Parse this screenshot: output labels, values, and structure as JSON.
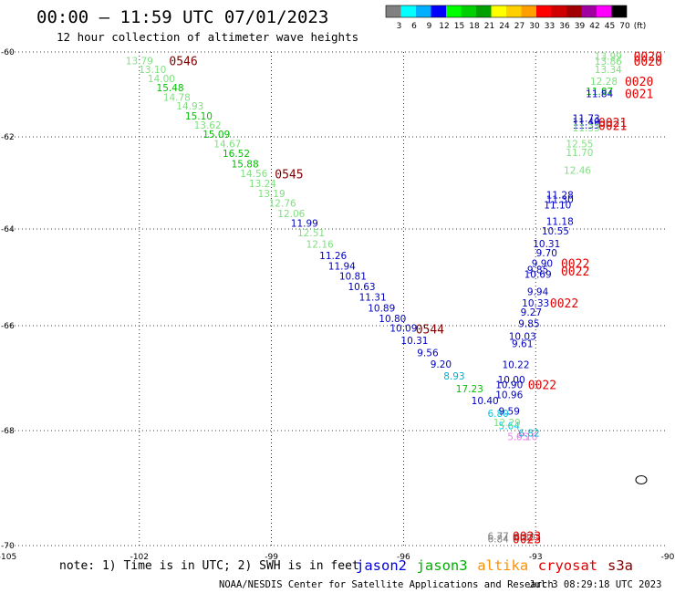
{
  "header": {
    "title": "00:00 – 11:59 UTC 07/01/2023",
    "subtitle": "12 hour collection of altimeter wave heights"
  },
  "colorbar": {
    "colors": [
      "#808080",
      "#00ffff",
      "#00b0ff",
      "#0000ff",
      "#00ff00",
      "#00d000",
      "#00a000",
      "#ffff00",
      "#ffd000",
      "#ffa000",
      "#ff0000",
      "#d00000",
      "#a00000",
      "#a000a0",
      "#ff00ff",
      "#000000"
    ],
    "labels": [
      "3",
      "6",
      "9",
      "12",
      "15",
      "18",
      "21",
      "24",
      "27",
      "30",
      "33",
      "36",
      "39",
      "42",
      "45",
      "70",
      "(ft)"
    ]
  },
  "map": {
    "x_ticks": [
      "-105",
      "-102",
      "-99",
      "-96",
      "-93",
      "-90"
    ],
    "y_ticks": [
      "-60",
      "-62",
      "-64",
      "-66",
      "-68",
      "-70"
    ],
    "grid": "dotted"
  },
  "observations": [
    {
      "t": "13.79",
      "c": "#80e080",
      "lon": -102.0,
      "lat": -60.2
    },
    {
      "t": "13.10",
      "c": "#80e080",
      "lon": -101.7,
      "lat": -60.41
    },
    {
      "t": "14.00",
      "c": "#80e080",
      "lon": -101.5,
      "lat": -60.62
    },
    {
      "t": "15.48",
      "c": "#00c000",
      "lon": -101.3,
      "lat": -60.84
    },
    {
      "t": "14.78",
      "c": "#80e080",
      "lon": -101.15,
      "lat": -61.06
    },
    {
      "t": "14.93",
      "c": "#80e080",
      "lon": -100.85,
      "lat": -61.27
    },
    {
      "t": "15.10",
      "c": "#00c000",
      "lon": -100.65,
      "lat": -61.5
    },
    {
      "t": "13.62",
      "c": "#80e080",
      "lon": -100.45,
      "lat": -61.72
    },
    {
      "t": "15.09",
      "c": "#00c000",
      "lon": -100.25,
      "lat": -61.94
    },
    {
      "t": "14.67",
      "c": "#80e080",
      "lon": -100.0,
      "lat": -62.15
    },
    {
      "t": "16.52",
      "c": "#00c000",
      "lon": -99.8,
      "lat": -62.36
    },
    {
      "t": "15.88",
      "c": "#00c000",
      "lon": -99.6,
      "lat": -62.58
    },
    {
      "t": "14.56",
      "c": "#80e080",
      "lon": -99.4,
      "lat": -62.79
    },
    {
      "t": "13.24",
      "c": "#80e080",
      "lon": -99.2,
      "lat": -63.01
    },
    {
      "t": "13.19",
      "c": "#80e080",
      "lon": -99.0,
      "lat": -63.23
    },
    {
      "t": "12.76",
      "c": "#80e080",
      "lon": -98.75,
      "lat": -63.44
    },
    {
      "t": "12.06",
      "c": "#80e080",
      "lon": -98.55,
      "lat": -63.66
    },
    {
      "t": "11.99",
      "c": "#0000c0",
      "lon": -98.25,
      "lat": -63.87
    },
    {
      "t": "12.51",
      "c": "#80e080",
      "lon": -98.1,
      "lat": -64.08
    },
    {
      "t": "12.16",
      "c": "#80e080",
      "lon": -97.9,
      "lat": -64.31
    },
    {
      "t": "11.26",
      "c": "#0000c0",
      "lon": -97.6,
      "lat": -64.55
    },
    {
      "t": "11.94",
      "c": "#0000c0",
      "lon": -97.4,
      "lat": -64.76
    },
    {
      "t": "10.81",
      "c": "#0000c0",
      "lon": -97.15,
      "lat": -64.97
    },
    {
      "t": "10.63",
      "c": "#0000c0",
      "lon": -96.95,
      "lat": -65.19
    },
    {
      "t": "11.31",
      "c": "#0000c0",
      "lon": -96.7,
      "lat": -65.41
    },
    {
      "t": "10.89",
      "c": "#0000c0",
      "lon": -96.5,
      "lat": -65.63
    },
    {
      "t": "10.80",
      "c": "#0000c0",
      "lon": -96.25,
      "lat": -65.85
    },
    {
      "t": "10.09",
      "c": "#0000c0",
      "lon": -96.0,
      "lat": -66.04
    },
    {
      "t": "10.31",
      "c": "#0000c0",
      "lon": -95.75,
      "lat": -66.28
    },
    {
      "t": "9.56",
      "c": "#0000c0",
      "lon": -95.45,
      "lat": -66.51
    },
    {
      "t": "9.20",
      "c": "#0000c0",
      "lon": -95.15,
      "lat": -66.73
    },
    {
      "t": "8.93",
      "c": "#00b0d0",
      "lon": -94.85,
      "lat": -66.96
    },
    {
      "t": "17.23",
      "c": "#00c000",
      "lon": -94.5,
      "lat": -67.2
    },
    {
      "t": "10.40",
      "c": "#0000c0",
      "lon": -94.15,
      "lat": -67.43
    },
    {
      "t": "6.80",
      "c": "#00c8e8",
      "lon": -93.85,
      "lat": -67.67
    },
    {
      "t": "5.64",
      "c": "#00c8e8",
      "lon": -93.6,
      "lat": -67.9
    },
    {
      "t": "5.95",
      "c": "#f080f0",
      "lon": -93.4,
      "lat": -68.1
    },
    {
      "t": "6.16",
      "c": "#f080f0",
      "lon": -93.2,
      "lat": -68.1
    },
    {
      "t": "6.82",
      "c": "#00b0d0",
      "lon": -93.15,
      "lat": -68.04
    },
    {
      "t": "13.99",
      "c": "#80e080",
      "lon": -91.35,
      "lat": -60.1
    },
    {
      "t": "13.86",
      "c": "#80e080",
      "lon": -91.35,
      "lat": -60.21
    },
    {
      "t": "13.34",
      "c": "#80e080",
      "lon": -91.35,
      "lat": -60.41
    },
    {
      "t": "12.28",
      "c": "#80e080",
      "lon": -91.45,
      "lat": -60.69
    },
    {
      "t": "11.87",
      "c": "#00c000",
      "lon": -91.55,
      "lat": -60.93
    },
    {
      "t": "11.84",
      "c": "#0000c0",
      "lon": -91.55,
      "lat": -60.98
    },
    {
      "t": "11.73",
      "c": "#0000c0",
      "lon": -91.85,
      "lat": -61.56
    },
    {
      "t": "11.49",
      "c": "#0000c0",
      "lon": -91.85,
      "lat": -61.64
    },
    {
      "t": "11.35",
      "c": "#0000c0",
      "lon": -91.85,
      "lat": -61.72
    },
    {
      "t": "11.33",
      "c": "#80e080",
      "lon": -91.85,
      "lat": -61.78
    },
    {
      "t": "12.55",
      "c": "#80e080",
      "lon": -92.0,
      "lat": -62.15
    },
    {
      "t": "11.70",
      "c": "#80e080",
      "lon": -92.0,
      "lat": -62.34
    },
    {
      "t": "12.46",
      "c": "#80e080",
      "lon": -92.05,
      "lat": -62.72
    },
    {
      "t": "11.28",
      "c": "#0000c0",
      "lon": -92.45,
      "lat": -63.26
    },
    {
      "t": "11.30",
      "c": "#0000c0",
      "lon": -92.45,
      "lat": -63.36
    },
    {
      "t": "11.10",
      "c": "#0000c0",
      "lon": -92.5,
      "lat": -63.48
    },
    {
      "t": "11.18",
      "c": "#0000c0",
      "lon": -92.45,
      "lat": -63.83
    },
    {
      "t": "10.55",
      "c": "#0000c0",
      "lon": -92.55,
      "lat": -64.04
    },
    {
      "t": "10.31",
      "c": "#0000c0",
      "lon": -92.75,
      "lat": -64.3
    },
    {
      "t": "9.70",
      "c": "#0000c0",
      "lon": -92.75,
      "lat": -64.49
    },
    {
      "t": "9.90",
      "c": "#0000c0",
      "lon": -92.85,
      "lat": -64.71
    },
    {
      "t": "9.85",
      "c": "#0000c0",
      "lon": -92.95,
      "lat": -64.84
    },
    {
      "t": "10.69",
      "c": "#0000c0",
      "lon": -92.95,
      "lat": -64.93
    },
    {
      "t": "9.94",
      "c": "#0000c0",
      "lon": -92.95,
      "lat": -65.29
    },
    {
      "t": "10.33",
      "c": "#0000c0",
      "lon": -93.0,
      "lat": -65.53
    },
    {
      "t": "9.27",
      "c": "#0000c0",
      "lon": -93.1,
      "lat": -65.72
    },
    {
      "t": "9.85",
      "c": "#0000c0",
      "lon": -93.15,
      "lat": -65.95
    },
    {
      "t": "10.03",
      "c": "#0000c0",
      "lon": -93.3,
      "lat": -66.2
    },
    {
      "t": "9.61",
      "c": "#0000c0",
      "lon": -93.3,
      "lat": -66.34
    },
    {
      "t": "10.22",
      "c": "#0000c0",
      "lon": -93.45,
      "lat": -66.74
    },
    {
      "t": "10.00",
      "c": "#0000c0",
      "lon": -93.55,
      "lat": -67.03
    },
    {
      "t": "10.90",
      "c": "#0000c0",
      "lon": -93.6,
      "lat": -67.12
    },
    {
      "t": "10.96",
      "c": "#0000c0",
      "lon": -93.6,
      "lat": -67.31
    },
    {
      "t": "9.59",
      "c": "#0000c0",
      "lon": -93.6,
      "lat": -67.63
    },
    {
      "t": "12.29",
      "c": "#80e080",
      "lon": -93.65,
      "lat": -67.84
    },
    {
      "t": "6.77",
      "c": "#808080",
      "lon": -93.85,
      "lat": -69.83
    },
    {
      "t": "6.84",
      "c": "#808080",
      "lon": -93.85,
      "lat": -69.88
    },
    {
      "t": "6.80",
      "c": "#808080",
      "lon": -93.25,
      "lat": -69.85
    }
  ],
  "times": [
    {
      "t": "0546",
      "c": "#800000",
      "lon": -101.0,
      "lat": -60.2
    },
    {
      "t": "0545",
      "c": "#800000",
      "lon": -98.6,
      "lat": -62.8
    },
    {
      "t": "0544",
      "c": "#800000",
      "lon": -95.4,
      "lat": -66.06
    },
    {
      "t": "0020",
      "c": "#e00000",
      "lon": -90.45,
      "lat": -60.1
    },
    {
      "t": "0020",
      "c": "#e00000",
      "lon": -90.45,
      "lat": -60.21
    },
    {
      "t": "0020",
      "c": "#e00000",
      "lon": -90.65,
      "lat": -60.69
    },
    {
      "t": "0021",
      "c": "#e00000",
      "lon": -90.65,
      "lat": -60.98
    },
    {
      "t": "0021",
      "c": "#e00000",
      "lon": -91.25,
      "lat": -61.66
    },
    {
      "t": "0021",
      "c": "#e00000",
      "lon": -91.25,
      "lat": -61.73
    },
    {
      "t": "0022",
      "c": "#e00000",
      "lon": -92.1,
      "lat": -64.71
    },
    {
      "t": "0022",
      "c": "#e00000",
      "lon": -92.1,
      "lat": -64.87
    },
    {
      "t": "0022",
      "c": "#e00000",
      "lon": -92.35,
      "lat": -65.53
    },
    {
      "t": "0022",
      "c": "#e00000",
      "lon": -92.85,
      "lat": -67.12
    },
    {
      "t": "0023",
      "c": "#e00000",
      "lon": -93.2,
      "lat": -69.83
    },
    {
      "t": "0023",
      "c": "#e00000",
      "lon": -93.2,
      "lat": -69.88
    }
  ],
  "footer": {
    "note": "note: 1) Time is in UTC; 2) SWH is in feet",
    "satellites": [
      {
        "name": "jason2",
        "color": "#0000e0"
      },
      {
        "name": "jason3",
        "color": "#00b000"
      },
      {
        "name": "altika",
        "color": "#ff9000"
      },
      {
        "name": "cryosat",
        "color": "#e00000"
      },
      {
        "name": "s3a",
        "color": "#800000"
      }
    ],
    "credit": "NOAA/NESDIS Center for Satellite Applications and Research",
    "timestamp": "Jul  3 08:29:18 UTC 2023"
  }
}
